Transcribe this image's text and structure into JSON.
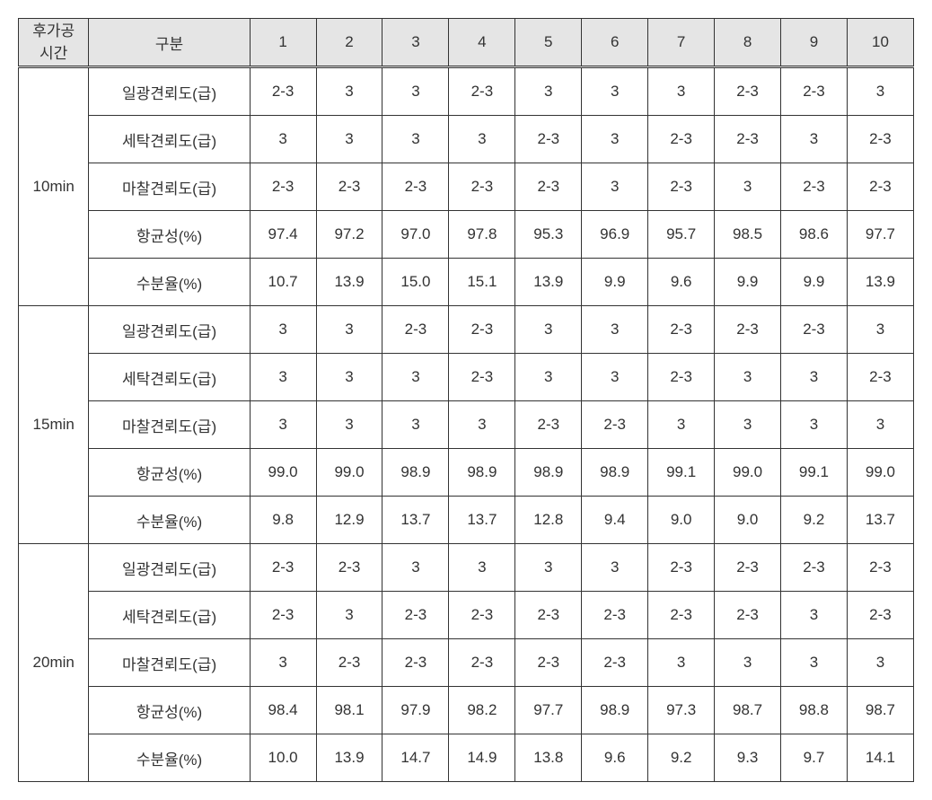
{
  "table": {
    "header": {
      "col0": "후가공\n시간",
      "col1": "구분",
      "cols": [
        "1",
        "2",
        "3",
        "4",
        "5",
        "6",
        "7",
        "8",
        "9",
        "10"
      ]
    },
    "row_labels": [
      "일광견뢰도(급)",
      "세탁견뢰도(급)",
      "마찰견뢰도(급)",
      "항균성(%)",
      "수분율(%)"
    ],
    "groups": [
      {
        "time": "10min",
        "rows": [
          [
            "2-3",
            "3",
            "3",
            "2-3",
            "3",
            "3",
            "3",
            "2-3",
            "2-3",
            "3"
          ],
          [
            "3",
            "3",
            "3",
            "3",
            "2-3",
            "3",
            "2-3",
            "2-3",
            "3",
            "2-3"
          ],
          [
            "2-3",
            "2-3",
            "2-3",
            "2-3",
            "2-3",
            "3",
            "2-3",
            "3",
            "2-3",
            "2-3"
          ],
          [
            "97.4",
            "97.2",
            "97.0",
            "97.8",
            "95.3",
            "96.9",
            "95.7",
            "98.5",
            "98.6",
            "97.7"
          ],
          [
            "10.7",
            "13.9",
            "15.0",
            "15.1",
            "13.9",
            "9.9",
            "9.6",
            "9.9",
            "9.9",
            "13.9"
          ]
        ]
      },
      {
        "time": "15min",
        "rows": [
          [
            "3",
            "3",
            "2-3",
            "2-3",
            "3",
            "3",
            "2-3",
            "2-3",
            "2-3",
            "3"
          ],
          [
            "3",
            "3",
            "3",
            "2-3",
            "3",
            "3",
            "2-3",
            "3",
            "3",
            "2-3"
          ],
          [
            "3",
            "3",
            "3",
            "3",
            "2-3",
            "2-3",
            "3",
            "3",
            "3",
            "3"
          ],
          [
            "99.0",
            "99.0",
            "98.9",
            "98.9",
            "98.9",
            "98.9",
            "99.1",
            "99.0",
            "99.1",
            "99.0"
          ],
          [
            "9.8",
            "12.9",
            "13.7",
            "13.7",
            "12.8",
            "9.4",
            "9.0",
            "9.0",
            "9.2",
            "13.7"
          ]
        ]
      },
      {
        "time": "20min",
        "rows": [
          [
            "2-3",
            "2-3",
            "3",
            "3",
            "3",
            "3",
            "2-3",
            "2-3",
            "2-3",
            "2-3"
          ],
          [
            "2-3",
            "3",
            "2-3",
            "2-3",
            "2-3",
            "2-3",
            "2-3",
            "2-3",
            "3",
            "2-3"
          ],
          [
            "3",
            "2-3",
            "2-3",
            "2-3",
            "2-3",
            "2-3",
            "3",
            "3",
            "3",
            "3"
          ],
          [
            "98.4",
            "98.1",
            "97.9",
            "98.2",
            "97.7",
            "98.9",
            "97.3",
            "98.7",
            "98.8",
            "98.7"
          ],
          [
            "10.0",
            "13.9",
            "14.7",
            "14.9",
            "13.8",
            "9.6",
            "9.2",
            "9.3",
            "9.7",
            "14.1"
          ]
        ]
      }
    ]
  }
}
